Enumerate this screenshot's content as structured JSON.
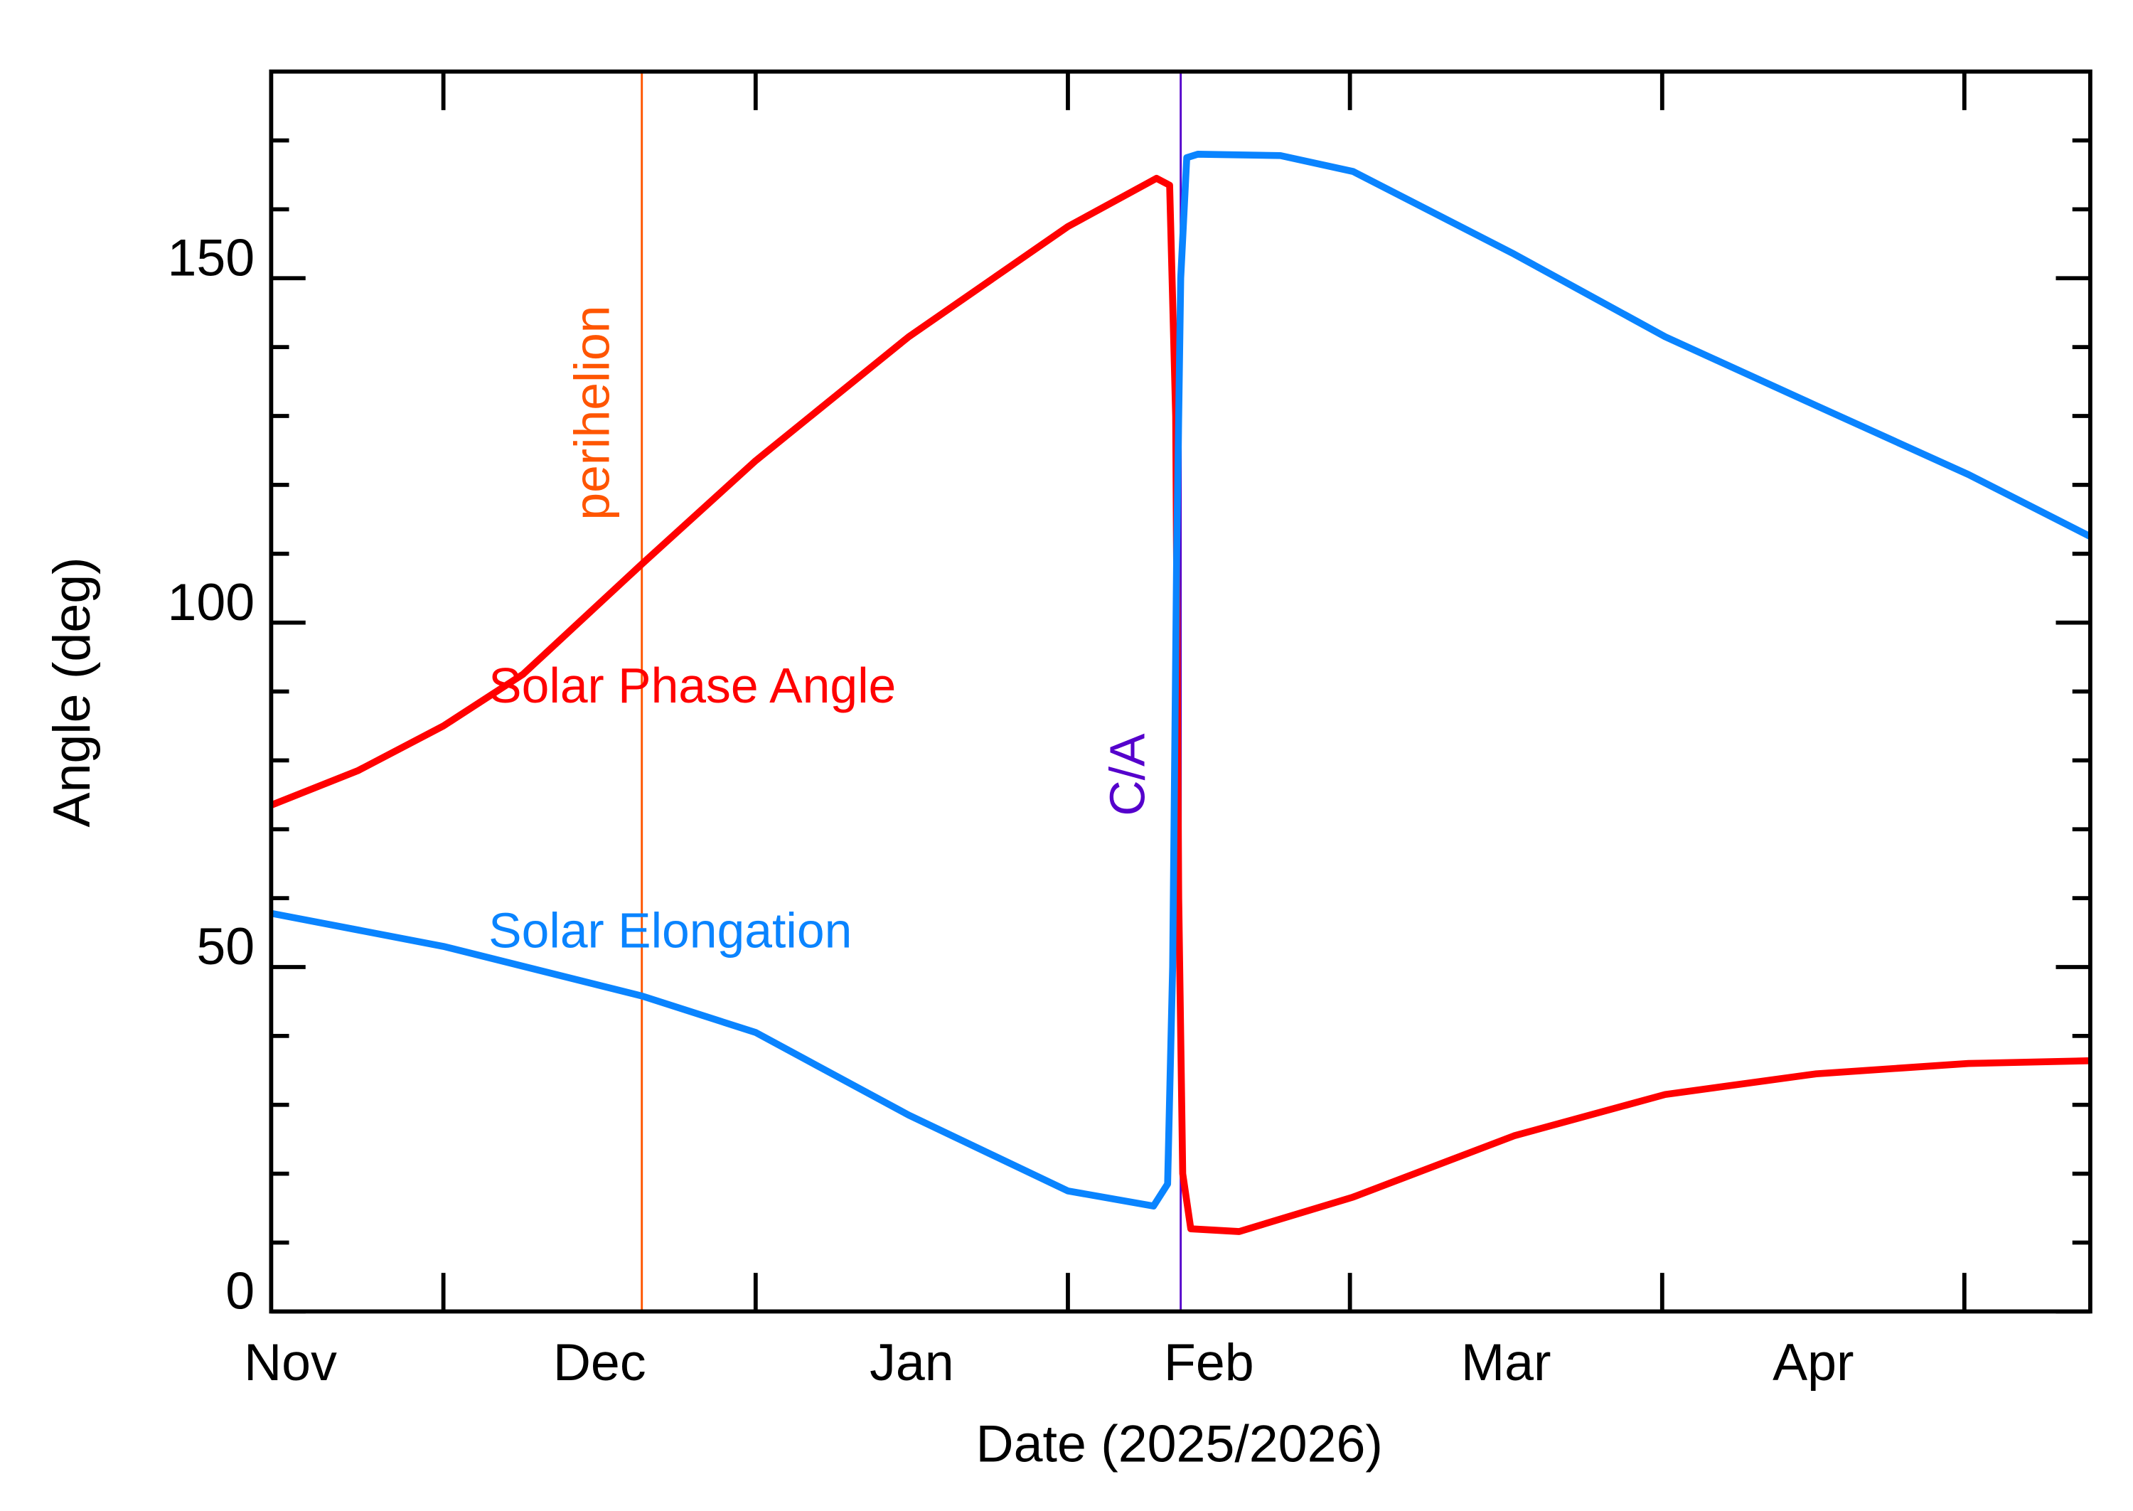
{
  "chart_data": {
    "type": "line",
    "x_label": "Date (2025/2026)",
    "y_label": "Angle (deg)",
    "xlim": [
      -17.1,
      163.5
    ],
    "xticks": [
      0,
      31,
      62,
      90,
      121,
      151
    ],
    "xticklabels": [
      {
        "value": -15.5,
        "label": "Nov"
      },
      {
        "value": 15.5,
        "label": "Dec"
      },
      {
        "value": 46.5,
        "label": "Jan"
      },
      {
        "value": 76,
        "label": "Feb"
      },
      {
        "value": 105.5,
        "label": "Mar"
      },
      {
        "value": 136,
        "label": "Apr"
      }
    ],
    "ylim": [
      0,
      180
    ],
    "yticks": [
      0,
      50,
      100,
      150
    ],
    "yminorticks": [
      10,
      20,
      30,
      40,
      60,
      70,
      80,
      90,
      110,
      120,
      130,
      140,
      160,
      170
    ],
    "markers": [
      {
        "x": 19.7,
        "label": "perihelion",
        "color": "#ff5500"
      },
      {
        "x": 73.2,
        "label": "C/A",
        "color": "#5500cc"
      }
    ],
    "series": [
      {
        "name": "Solar Phase Angle",
        "color": "#ff0000",
        "x": [
          -17.1,
          -8.5,
          0,
          7.9,
          19.7,
          31,
          46.2,
          62,
          70.8,
          72.1,
          72.7,
          73.0,
          73.4,
          74.2,
          79,
          90.3,
          106.3,
          121.3,
          136.3,
          151.4,
          163.5
        ],
        "values": [
          73.5,
          78.5,
          85,
          92.5,
          108.5,
          123.5,
          141.5,
          157.5,
          164.5,
          163.5,
          130,
          60,
          20,
          12,
          11.6,
          16.6,
          25.5,
          31.5,
          34.5,
          36,
          36.4
        ]
      },
      {
        "name": "Solar Elongation",
        "color": "#0a84ff",
        "x": [
          -17.1,
          0,
          19.7,
          31,
          46.2,
          62,
          70.5,
          71.9,
          72.4,
          72.8,
          73.2,
          73.8,
          74.9,
          83.1,
          90.3,
          106.3,
          121.3,
          136.3,
          151.4,
          163.5
        ],
        "values": [
          57.8,
          53,
          45.8,
          40.5,
          28.5,
          17.5,
          15.3,
          18.5,
          50,
          110,
          150,
          167.5,
          168,
          167.8,
          165.5,
          153.5,
          141.5,
          131.5,
          121.5,
          112.5
        ]
      }
    ]
  }
}
